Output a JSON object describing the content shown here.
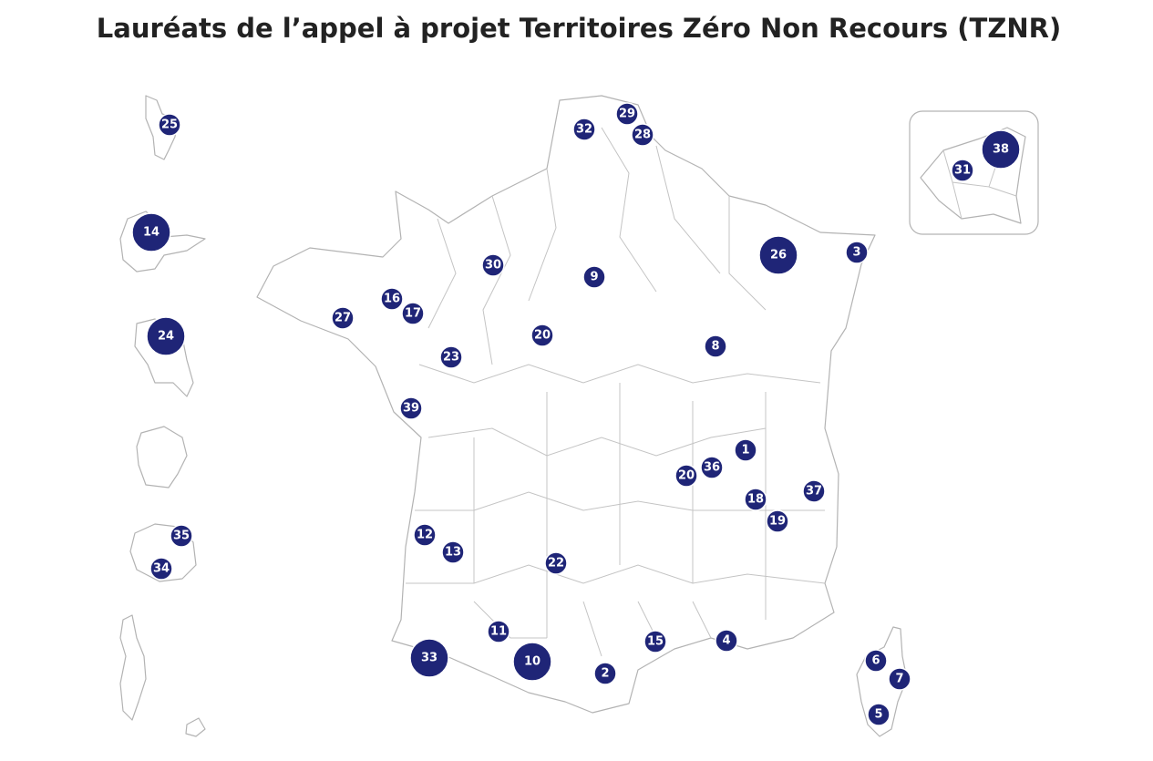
{
  "title": "Lauréats de l’appel à projet Territoires Zéro Non Recours (TZNR)",
  "markers": [
    {
      "label": 25
    },
    {
      "label": 14
    },
    {
      "label": 24
    },
    {
      "label": 35
    },
    {
      "label": 34
    },
    {
      "label": 32
    },
    {
      "label": 29
    },
    {
      "label": 28
    },
    {
      "label": 38
    },
    {
      "label": 31
    },
    {
      "label": 26
    },
    {
      "label": 3
    },
    {
      "label": 30
    },
    {
      "label": 9
    },
    {
      "label": 16
    },
    {
      "label": 17
    },
    {
      "label": 27
    },
    {
      "label": 20
    },
    {
      "label": 8
    },
    {
      "label": 23
    },
    {
      "label": 39
    },
    {
      "label": 1
    },
    {
      "label": 36
    },
    {
      "label": 20
    },
    {
      "label": 37
    },
    {
      "label": 18
    },
    {
      "label": 19
    },
    {
      "label": 12
    },
    {
      "label": 13
    },
    {
      "label": 22
    },
    {
      "label": 11
    },
    {
      "label": 4
    },
    {
      "label": 15
    },
    {
      "label": 33
    },
    {
      "label": 10
    },
    {
      "label": 2
    },
    {
      "label": 6
    },
    {
      "label": 7
    },
    {
      "label": 5
    }
  ]
}
